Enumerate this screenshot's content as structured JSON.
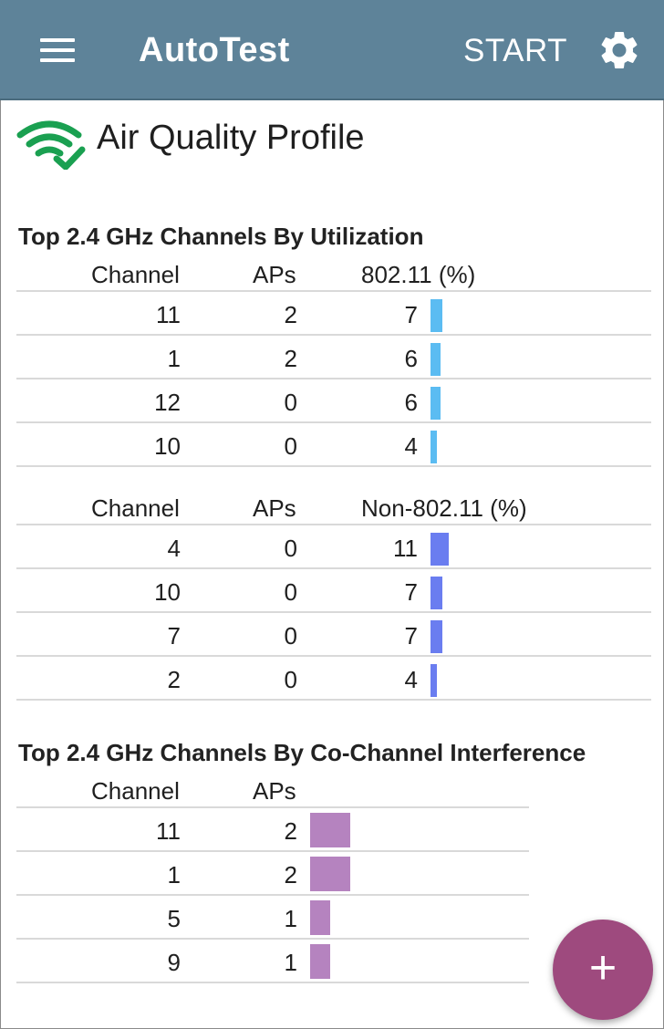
{
  "app_bar": {
    "title": "AutoTest",
    "start_label": "START",
    "color": "#5e8399"
  },
  "page": {
    "title": "Air Quality Profile",
    "icon": "wifi-check-icon",
    "icon_color": "#1aa051"
  },
  "utilization": {
    "section_title": "Top 2.4 GHz Channels By Utilization",
    "wifi_table": {
      "headers": [
        "Channel",
        "APs",
        "802.11 (%)"
      ],
      "bar_color": "#5bbcf2",
      "rows": [
        {
          "channel": "11",
          "aps": "2",
          "value": "7"
        },
        {
          "channel": "1",
          "aps": "2",
          "value": "6"
        },
        {
          "channel": "12",
          "aps": "0",
          "value": "6"
        },
        {
          "channel": "10",
          "aps": "0",
          "value": "4"
        }
      ]
    },
    "non_wifi_table": {
      "headers": [
        "Channel",
        "APs",
        "Non-802.11 (%)"
      ],
      "bar_color": "#6a7df0",
      "rows": [
        {
          "channel": "4",
          "aps": "0",
          "value": "11"
        },
        {
          "channel": "10",
          "aps": "0",
          "value": "7"
        },
        {
          "channel": "7",
          "aps": "0",
          "value": "7"
        },
        {
          "channel": "2",
          "aps": "0",
          "value": "4"
        }
      ]
    }
  },
  "co_channel": {
    "section_title": "Top 2.4 GHz Channels By Co-Channel Interference",
    "headers": [
      "Channel",
      "APs"
    ],
    "bar_color": "#b583bf",
    "rows": [
      {
        "channel": "11",
        "aps": "2"
      },
      {
        "channel": "1",
        "aps": "2"
      },
      {
        "channel": "5",
        "aps": "1"
      },
      {
        "channel": "9",
        "aps": "1"
      }
    ]
  },
  "fab": {
    "icon": "plus-icon",
    "label": "+",
    "color": "#9e4a7e"
  }
}
